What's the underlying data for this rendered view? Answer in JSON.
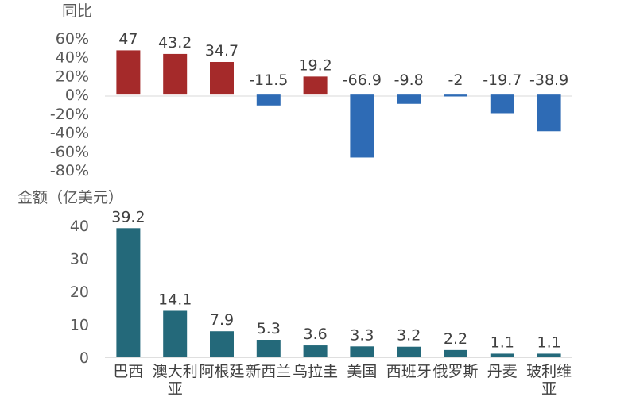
{
  "chart_data": [
    {
      "type": "bar",
      "title": "",
      "ylabel": "同比",
      "ylim": [
        -80,
        60
      ],
      "yticks": [
        60,
        40,
        20,
        0,
        -20,
        -40,
        -60,
        -80
      ],
      "ytick_labels": [
        "60%",
        "40%",
        "20%",
        "0%",
        "-20%",
        "-40%",
        "-60%",
        "-80%"
      ],
      "unit": "%",
      "categories": [
        "巴西",
        "澳大利亚",
        "阿根廷",
        "新西兰",
        "乌拉圭",
        "美国",
        "西班牙",
        "俄罗斯",
        "丹麦",
        "玻利维亚"
      ],
      "values": [
        47,
        43.2,
        34.7,
        -11.5,
        19.2,
        -66.9,
        -9.8,
        -2,
        -19.7,
        -38.9
      ],
      "value_labels": [
        "47",
        "43.2",
        "34.7",
        "-11.5",
        "19.2",
        "-66.9",
        "-9.8",
        "-2",
        "-19.7",
        "-38.9"
      ],
      "colors": {
        "positive": "#A52A2A",
        "negative": "#2E6BB5"
      }
    },
    {
      "type": "bar",
      "title": "",
      "ylabel": "金额（亿美元）",
      "ylim": [
        0,
        40
      ],
      "yticks": [
        0,
        10,
        20,
        30,
        40
      ],
      "ytick_labels": [
        "0",
        "10",
        "20",
        "30",
        "40"
      ],
      "categories": [
        "巴西",
        "澳大利亚",
        "阿根廷",
        "新西兰",
        "乌拉圭",
        "美国",
        "西班牙",
        "俄罗斯",
        "丹麦",
        "玻利维亚"
      ],
      "category_lines": [
        [
          "巴西"
        ],
        [
          "澳大利",
          "亚"
        ],
        [
          "阿根廷"
        ],
        [
          "新西兰"
        ],
        [
          "乌拉圭"
        ],
        [
          "美国"
        ],
        [
          "西班牙"
        ],
        [
          "俄罗斯"
        ],
        [
          "丹麦"
        ],
        [
          "玻利维",
          "亚"
        ]
      ],
      "values": [
        39.2,
        14.1,
        7.9,
        5.3,
        3.6,
        3.3,
        3.2,
        2.2,
        1.1,
        1.1
      ],
      "value_labels": [
        "39.2",
        "14.1",
        "7.9",
        "5.3",
        "3.6",
        "3.3",
        "3.2",
        "2.2",
        "1.1",
        "1.1"
      ],
      "colors": {
        "bar": "#24697A"
      }
    }
  ]
}
